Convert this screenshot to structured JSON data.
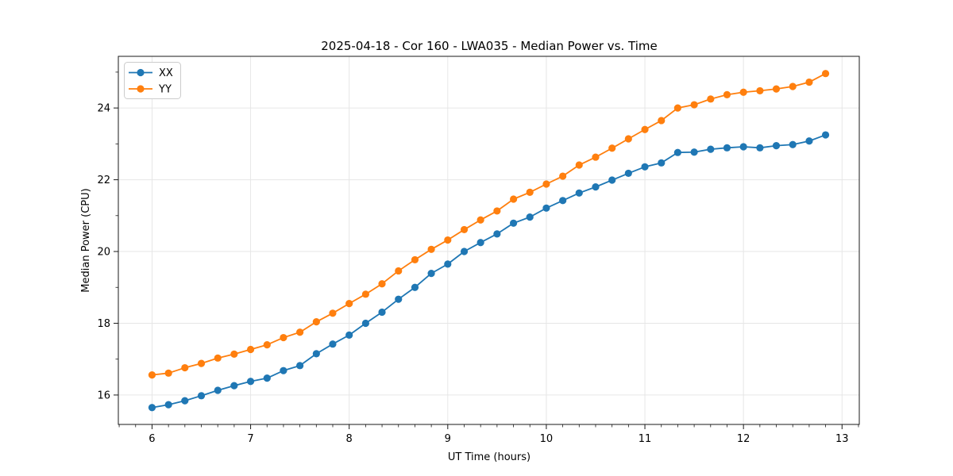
{
  "chart_data": {
    "type": "line",
    "title": "2025-04-18 - Cor 160 - LWA035 - Median Power vs. Time",
    "xlabel": "UT Time (hours)",
    "ylabel": "Median Power (CPU)",
    "xlim": [
      5.658,
      13.175
    ],
    "ylim": [
      15.18,
      25.44
    ],
    "xticks": [
      6,
      7,
      8,
      9,
      10,
      11,
      12,
      13
    ],
    "yticks": [
      16,
      18,
      20,
      22,
      24
    ],
    "x_minor_step": 0.1667,
    "y_minor_step": 1,
    "grid": true,
    "grid_color": "#e6e6e6",
    "spine_color": "#1a1a1a",
    "legend_position": "upper left",
    "x": [
      6,
      6.167,
      6.333,
      6.5,
      6.667,
      6.833,
      7,
      7.167,
      7.333,
      7.5,
      7.667,
      7.833,
      8,
      8.167,
      8.333,
      8.5,
      8.667,
      8.833,
      9,
      9.167,
      9.333,
      9.5,
      9.667,
      9.833,
      10,
      10.167,
      10.333,
      10.5,
      10.667,
      10.833,
      11,
      11.167,
      11.333,
      11.5,
      11.667,
      11.833,
      12,
      12.167,
      12.333,
      12.5,
      12.667,
      12.833
    ],
    "series": [
      {
        "name": "XX",
        "color": "#1f77b4",
        "values": [
          15.65,
          15.73,
          15.84,
          15.98,
          16.13,
          16.26,
          16.38,
          16.47,
          16.68,
          16.82,
          17.15,
          17.42,
          17.67,
          18.0,
          18.31,
          18.67,
          19.0,
          19.39,
          19.65,
          20.0,
          20.25,
          20.49,
          20.79,
          20.96,
          21.21,
          21.42,
          21.63,
          21.8,
          21.99,
          22.18,
          22.36,
          22.47,
          22.76,
          22.77,
          22.85,
          22.89,
          22.92,
          22.89,
          22.95,
          22.98,
          23.08,
          23.25
        ]
      },
      {
        "name": "YY",
        "color": "#ff7f0e",
        "values": [
          16.56,
          16.61,
          16.76,
          16.88,
          17.03,
          17.14,
          17.27,
          17.4,
          17.6,
          17.75,
          18.04,
          18.28,
          18.55,
          18.81,
          19.1,
          19.46,
          19.77,
          20.06,
          20.32,
          20.61,
          20.88,
          21.13,
          21.46,
          21.65,
          21.88,
          22.1,
          22.41,
          22.63,
          22.88,
          23.14,
          23.4,
          23.65,
          24.0,
          24.09,
          24.25,
          24.37,
          24.44,
          24.48,
          24.53,
          24.6,
          24.72,
          24.96
        ]
      }
    ]
  }
}
